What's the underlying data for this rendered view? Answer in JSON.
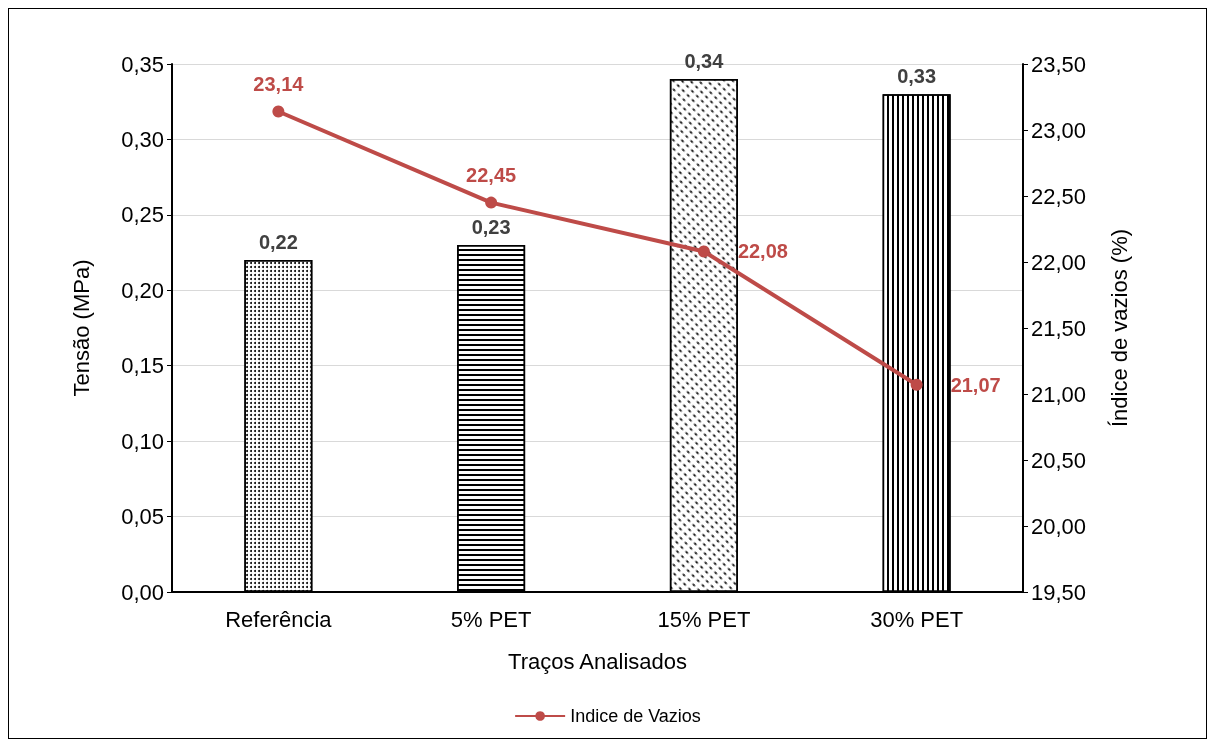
{
  "chart_data": {
    "type": "bar",
    "xlabel": "Traços Analisados",
    "ylabel": "Tensão (MPa)",
    "y2label": "Índice de vazios (%)",
    "categories": [
      "Referência",
      "5% PET",
      "15% PET",
      "30% PET"
    ],
    "series": [
      {
        "color": "#000000",
        "values": [
          0.22,
          0.23,
          0.34,
          0.33
        ],
        "value_labels": [
          "0,22",
          "0,23",
          "0,34",
          "0,33"
        ]
      },
      {
        "type": "line",
        "name": "Indice de Vazios",
        "axis": "y2",
        "color": "#be4b48",
        "values": [
          23.14,
          22.45,
          22.08,
          21.07
        ],
        "value_labels": [
          "23,14",
          "22,45",
          "22,08",
          "21,07"
        ]
      }
    ],
    "ylim": [
      0,
      0.35
    ],
    "yticks": [
      {
        "value": 0,
        "label": "0,00"
      },
      {
        "value": 0.05,
        "label": "0,05"
      },
      {
        "value": 0.1,
        "label": "0,10"
      },
      {
        "value": 0.15,
        "label": "0,15"
      },
      {
        "value": 0.2,
        "label": "0,20"
      },
      {
        "value": 0.25,
        "label": "0,25"
      },
      {
        "value": 0.3,
        "label": "0,30"
      },
      {
        "value": 0.35,
        "label": "0,35"
      }
    ],
    "y2lim": [
      19.5,
      23.5
    ],
    "y2ticks": [
      {
        "value": 19.5,
        "label": "19,50"
      },
      {
        "value": 20,
        "label": "20,00"
      },
      {
        "value": 20.5,
        "label": "20,50"
      },
      {
        "value": 21,
        "label": "21,00"
      },
      {
        "value": 21.5,
        "label": "21,50"
      },
      {
        "value": 22,
        "label": "22,00"
      },
      {
        "value": 22.5,
        "label": "22,50"
      },
      {
        "value": 23,
        "label": "23,00"
      },
      {
        "value": 23.5,
        "label": "23,50"
      }
    ],
    "grid": "y",
    "legend": "bottom",
    "marker": "circle"
  }
}
